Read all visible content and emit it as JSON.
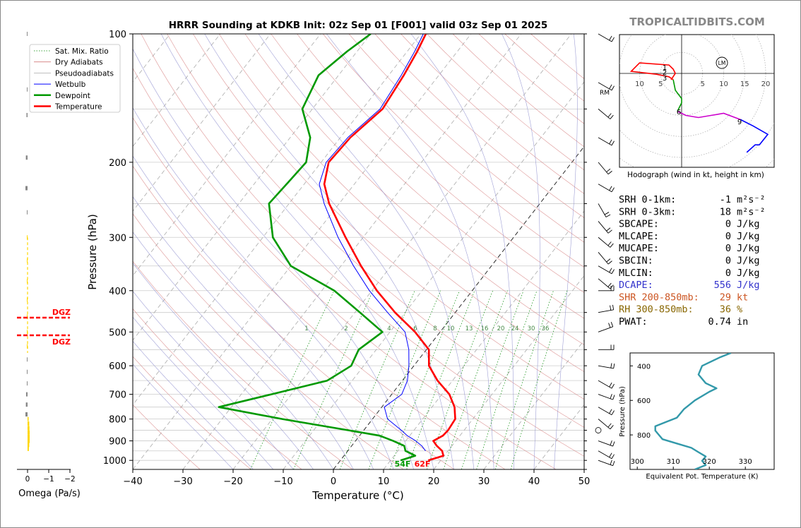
{
  "colors": {
    "temperature": "#ff0000",
    "dewpoint": "#009900",
    "wetbulb": "#0000ff",
    "dry_adiabat": "#d47a7a",
    "moist_adiabat": "#8888cc",
    "mixing_ratio": "#008800",
    "watermark": "#888888",
    "dgz": "#ff0000",
    "omega": "#888888",
    "omega_pos": "#ffd700",
    "theta_e": "#3399aa",
    "dcape": "#3333cc",
    "shr": "#cc5522",
    "rh": "#886600"
  },
  "chart_data": [
    {
      "type": "skew-t",
      "title": "HRRR Sounding at KDKB Init: 02z Sep 01 [F001] valid 03z Sep 01 2025",
      "xlabel": "Temperature (°C)",
      "ylabel": "Pressure (hPa)",
      "xlim": [
        -40,
        50
      ],
      "ylim": [
        1050,
        100
      ],
      "y_scale": "log",
      "x_ticks": [
        -40,
        -30,
        -20,
        -10,
        0,
        10,
        20,
        30,
        40,
        50
      ],
      "x_tick_labels": [
        "−40",
        "−30",
        "−20",
        "−10",
        "0",
        "10",
        "20",
        "30",
        "40",
        "50"
      ],
      "y_ticks": [
        100,
        200,
        300,
        400,
        500,
        600,
        700,
        800,
        900,
        1000
      ],
      "grid": true,
      "legend_position": "upper-left",
      "legend": [
        "Sat. Mix. Ratio",
        "Dry Adiabats",
        "Pseudoadiabats",
        "Wetbulb",
        "Dewpoint",
        "Temperature"
      ],
      "mixing_ratio_labels": [
        "1",
        "2",
        "4",
        "6",
        "8",
        "10",
        "13",
        "16",
        "20",
        "24",
        "30",
        "36"
      ],
      "series": [
        {
          "name": "Temperature",
          "p": [
            1000,
            975,
            950,
            925,
            900,
            875,
            850,
            800,
            750,
            700,
            650,
            600,
            550,
            500,
            450,
            400,
            350,
            300,
            250,
            225,
            200,
            175,
            150,
            125,
            110,
            100
          ],
          "t": [
            17.5,
            19.8,
            18.8,
            17,
            15.5,
            16.6,
            16.8,
            16.5,
            14.5,
            11.5,
            7,
            3,
            0.5,
            -5,
            -12,
            -19,
            -26,
            -33.5,
            -42,
            -46,
            -48.5,
            -48,
            -46,
            -47,
            -48,
            -49
          ]
        },
        {
          "name": "Dewpoint",
          "p": [
            1000,
            975,
            950,
            925,
            900,
            875,
            850,
            800,
            750,
            700,
            650,
            600,
            550,
            500,
            450,
            400,
            350,
            300,
            250,
            225,
            200,
            175,
            150,
            125,
            110,
            100
          ],
          "t": [
            12,
            14.2,
            11.5,
            10.5,
            7.5,
            4,
            -3,
            -18,
            -32.5,
            -24,
            -15,
            -12.5,
            -13.5,
            -11.5,
            -19,
            -27.5,
            -40,
            -48,
            -54,
            -53.5,
            -53,
            -56,
            -62,
            -64,
            -62,
            -60
          ]
        },
        {
          "name": "Wetbulb",
          "p": [
            950,
            925,
            900,
            875,
            850,
            800,
            750,
            700,
            650,
            600,
            550,
            500,
            450,
            400,
            350,
            300,
            250,
            225,
            200,
            175,
            150,
            125,
            110,
            100
          ],
          "t": [
            15.5,
            14,
            12,
            9.5,
            7.5,
            3,
            0.5,
            2,
            1,
            -1,
            -3.5,
            -7,
            -13.5,
            -20.5,
            -27.5,
            -35,
            -43,
            -47,
            -49,
            -48.5,
            -46.5,
            -47.5,
            -48.5,
            -49.5
          ]
        }
      ],
      "surface_labels": {
        "dewpoint": "54F",
        "temperature": "62F"
      },
      "markers": [
        "RM"
      ]
    },
    {
      "type": "line",
      "title": "Hodograph (wind in kt, height in km)",
      "x_ticks": [
        "10",
        "5",
        "5",
        "10",
        "15",
        "20"
      ],
      "height_labels": [
        "1",
        "2",
        "3",
        "6",
        "9"
      ],
      "marker": "LM",
      "series": [
        {
          "name": "0-3km",
          "u": [
            -2.5,
            -1.5,
            -2,
            -3,
            -10,
            -12,
            -6,
            -3,
            -2
          ],
          "v": [
            -1.5,
            0,
            1,
            2,
            2.5,
            0.5,
            -0.2,
            -0.8,
            -1.5
          ]
        },
        {
          "name": "3-6km",
          "u": [
            -2,
            -1.5,
            0,
            0,
            -1
          ],
          "v": [
            -1.5,
            -4,
            -6,
            -7,
            -9
          ]
        },
        {
          "name": "6-9km",
          "u": [
            -1,
            1,
            4,
            7,
            10,
            14
          ],
          "v": [
            -9,
            -10,
            -10.5,
            -10,
            -9.5,
            -11
          ]
        },
        {
          "name": "9km+",
          "u": [
            14,
            17,
            20.5,
            18.5,
            17.5,
            15.5
          ],
          "v": [
            -11,
            -12.5,
            -14.5,
            -17,
            -17,
            -18.8
          ]
        }
      ]
    },
    {
      "type": "line",
      "title": "Omega",
      "xlabel": "Omega (Pa/s)",
      "x_ticks": [
        "0",
        "−1",
        "−2"
      ],
      "annotations": [
        "DGZ",
        "DGZ"
      ]
    },
    {
      "type": "line",
      "xlabel": "Equivalent Pot. Temperature (K)",
      "ylabel": "Pressure (hPa)",
      "x_ticks": [
        "300",
        "310",
        "320",
        "330"
      ],
      "y_ticks": [
        "400",
        "600",
        "800"
      ],
      "xlim": [
        298,
        338
      ],
      "ylim": [
        1000,
        325
      ],
      "series": [
        {
          "name": "theta_e",
          "p": [
            1000,
            975,
            950,
            925,
            900,
            875,
            850,
            825,
            800,
            775,
            750,
            725,
            700,
            650,
            600,
            550,
            530,
            500,
            450,
            400,
            350,
            325
          ],
          "x": [
            316,
            319,
            318,
            319,
            317,
            315,
            311,
            307,
            306,
            305,
            305,
            308,
            311,
            313,
            316,
            320,
            322,
            319,
            317,
            318,
            323,
            326
          ]
        }
      ]
    }
  ],
  "branding": {
    "watermark": "TROPICALTIDBITS.COM"
  },
  "stats": [
    {
      "label": "SRH 0-1km:",
      "value": "-1",
      "unit": "m²s⁻²",
      "color": "#000000"
    },
    {
      "label": "SRH 0-3km:",
      "value": "18",
      "unit": "m²s⁻²",
      "color": "#000000"
    },
    {
      "label": "SBCAPE:",
      "value": "0",
      "unit": "J/kg",
      "color": "#000000"
    },
    {
      "label": "MLCAPE:",
      "value": "0",
      "unit": "J/kg",
      "color": "#000000"
    },
    {
      "label": "MUCAPE:",
      "value": "0",
      "unit": "J/kg",
      "color": "#000000"
    },
    {
      "label": "SBCIN:",
      "value": "0",
      "unit": "J/kg",
      "color": "#000000"
    },
    {
      "label": "MLCIN:",
      "value": "0",
      "unit": "J/kg",
      "color": "#000000"
    },
    {
      "label": "DCAPE:",
      "value": "556",
      "unit": "J/kg",
      "color": "#3333cc"
    },
    {
      "label": "SHR 200-850mb:",
      "value": "29",
      "unit": "kt",
      "color": "#cc5522"
    },
    {
      "label": "RH 300-850mb:",
      "value": "36",
      "unit": "%",
      "color": "#886600"
    },
    {
      "label": "PWAT:",
      "value": "0.74",
      "unit": "in",
      "color": "#000000"
    }
  ]
}
